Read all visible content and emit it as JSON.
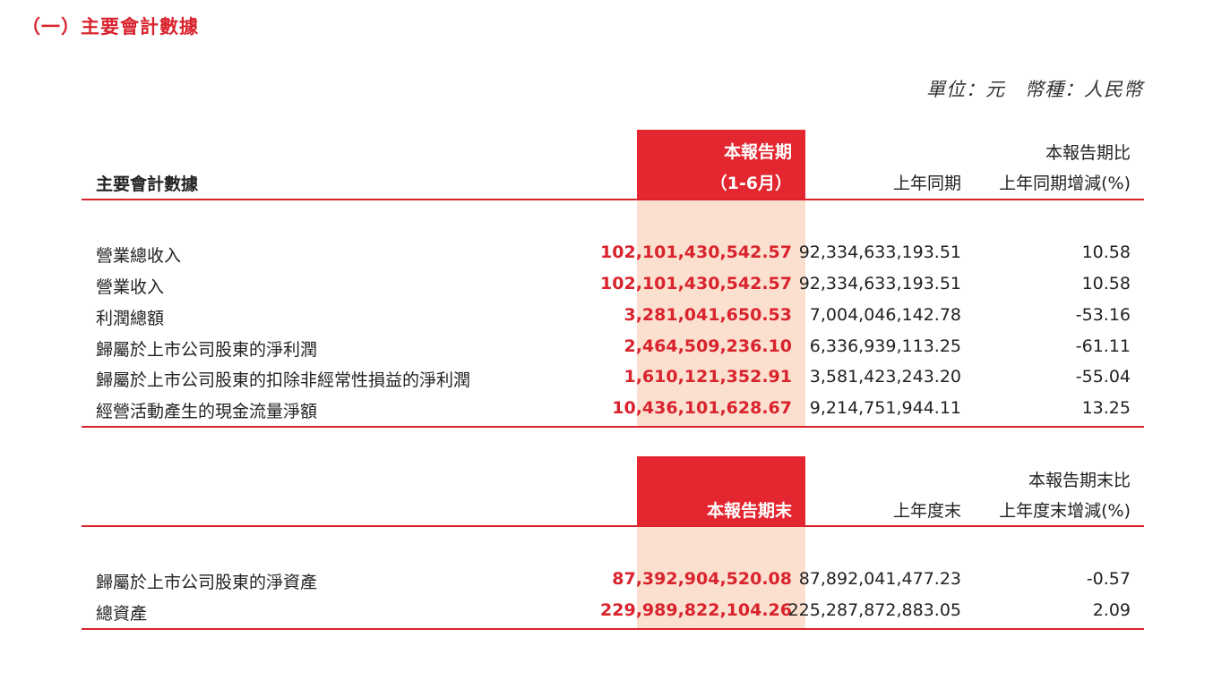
{
  "section_title": "（一）主要會計數據",
  "unit_note": "單位：元　幣種：人民幣",
  "table1": {
    "header": {
      "label": "主要會計數據",
      "col1_line1": "本報告期",
      "col1_line2": "（1-6月）",
      "col2": "上年同期",
      "col3_line1": "本報告期比",
      "col3_line2": "上年同期增減(%)"
    },
    "rows": [
      {
        "label": "營業總收入",
        "current": "102,101,430,542.57",
        "prior": "92,334,633,193.51",
        "change": "10.58"
      },
      {
        "label": "營業收入",
        "current": "102,101,430,542.57",
        "prior": "92,334,633,193.51",
        "change": "10.58"
      },
      {
        "label": "利潤總額",
        "current": "3,281,041,650.53",
        "prior": "7,004,046,142.78",
        "change": "-53.16"
      },
      {
        "label": "歸屬於上市公司股東的淨利潤",
        "current": "2,464,509,236.10",
        "prior": "6,336,939,113.25",
        "change": "-61.11"
      },
      {
        "label": "歸屬於上市公司股東的扣除非經常性損益的淨利潤",
        "current": "1,610,121,352.91",
        "prior": "3,581,423,243.20",
        "change": "-55.04"
      },
      {
        "label": "經營活動產生的現金流量淨額",
        "current": "10,436,101,628.67",
        "prior": "9,214,751,944.11",
        "change": "13.25"
      }
    ]
  },
  "table2": {
    "header": {
      "col1": "本報告期末",
      "col2": "上年度末",
      "col3_line1": "本報告期末比",
      "col3_line2": "上年度末增減(%)"
    },
    "rows": [
      {
        "label": "歸屬於上市公司股東的淨資產",
        "current": "87,392,904,520.08",
        "prior": "87,892,041,477.23",
        "change": "-0.57"
      },
      {
        "label": "總資產",
        "current": "229,989,822,104.26",
        "prior": "225,287,872,883.05",
        "change": "2.09"
      }
    ]
  },
  "colors": {
    "accent_red": "#e3262f",
    "highlight_bg": "#fbe0d0"
  }
}
